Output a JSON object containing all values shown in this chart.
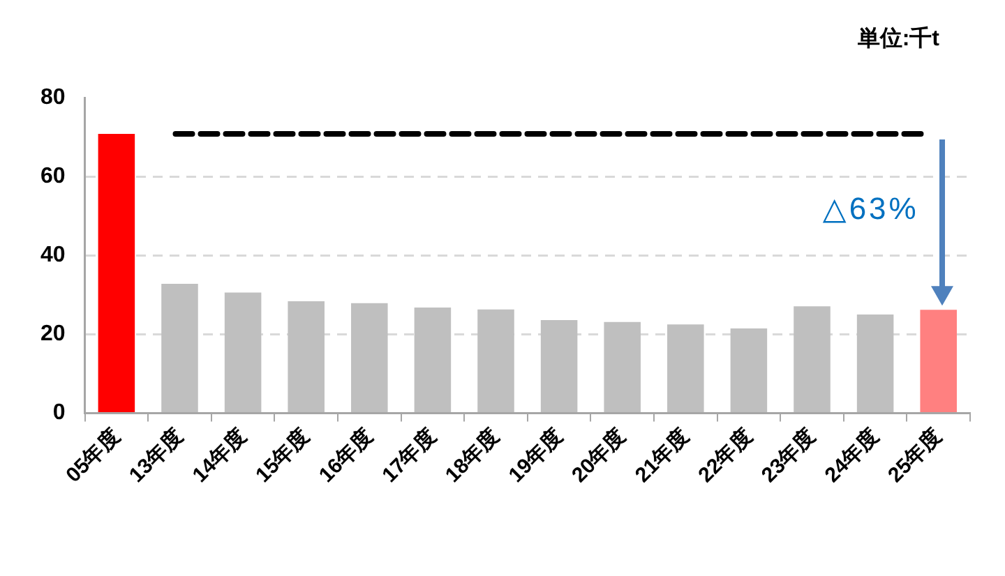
{
  "chart_data": {
    "type": "bar",
    "categories": [
      "05年度",
      "13年度",
      "14年度",
      "15年度",
      "16年度",
      "17年度",
      "18年度",
      "19年度",
      "20年度",
      "21年度",
      "22年度",
      "23年度",
      "24年度",
      "25年度"
    ],
    "values": [
      70.8,
      32.8,
      30.6,
      28.4,
      27.9,
      26.8,
      26.3,
      23.6,
      23.1,
      22.5,
      21.5,
      27.1,
      25.0,
      26.2
    ],
    "colors": [
      "#ff0000",
      "#bfbfbf",
      "#bfbfbf",
      "#bfbfbf",
      "#bfbfbf",
      "#bfbfbf",
      "#bfbfbf",
      "#bfbfbf",
      "#bfbfbf",
      "#bfbfbf",
      "#bfbfbf",
      "#bfbfbf",
      "#bfbfbf",
      "#ff8080"
    ],
    "ylim": [
      0,
      80
    ],
    "yticks": [
      0,
      20,
      40,
      60,
      80
    ],
    "grid": "y",
    "ref_lines": [
      {
        "axis": "y",
        "value": 70.8,
        "color": "#000000",
        "line_style": "dashed"
      }
    ],
    "annotations": [
      "単位:千t",
      "△63%"
    ]
  }
}
